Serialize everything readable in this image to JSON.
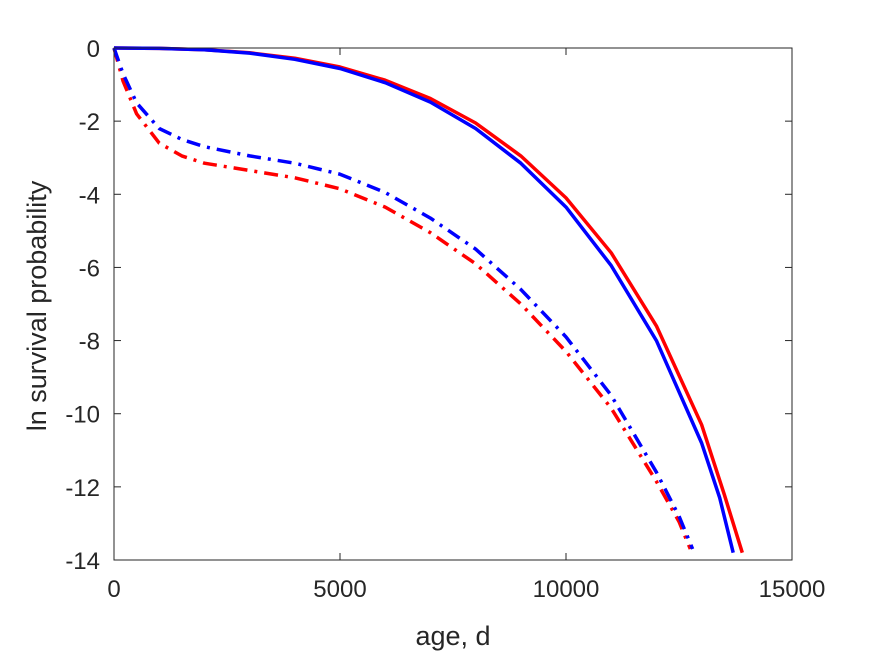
{
  "chart_data": {
    "type": "line",
    "title": "",
    "xlabel": "age, d",
    "ylabel": "ln survival probability",
    "xlim": [
      0,
      15000
    ],
    "ylim": [
      -14,
      0
    ],
    "xticks": [
      0,
      5000,
      10000,
      15000
    ],
    "xtick_labels": [
      "0",
      "5000",
      "10000",
      "15000"
    ],
    "yticks": [
      0,
      -2,
      -4,
      -6,
      -8,
      -10,
      -12,
      -14
    ],
    "ytick_labels": [
      "0",
      "-2",
      "-4",
      "-6",
      "-8",
      "-10",
      "-12",
      "-14"
    ],
    "grid": false,
    "legend": null,
    "series": [
      {
        "color": "#ff0000",
        "line_style": "solid",
        "x": [
          0,
          1000,
          2000,
          3000,
          4000,
          5000,
          6000,
          7000,
          8000,
          9000,
          10000,
          11000,
          12000,
          13000,
          13500,
          13900
        ],
        "y": [
          0,
          -0.01,
          -0.05,
          -0.13,
          -0.28,
          -0.52,
          -0.88,
          -1.38,
          -2.05,
          -2.95,
          -4.1,
          -5.6,
          -7.6,
          -10.3,
          -12.2,
          -13.8
        ]
      },
      {
        "color": "#0000ff",
        "line_style": "solid",
        "x": [
          0,
          1000,
          2000,
          3000,
          4000,
          5000,
          6000,
          7000,
          8000,
          9000,
          10000,
          11000,
          12000,
          13000,
          13400,
          13700
        ],
        "y": [
          0,
          -0.01,
          -0.05,
          -0.14,
          -0.31,
          -0.56,
          -0.95,
          -1.48,
          -2.2,
          -3.15,
          -4.35,
          -5.95,
          -8.0,
          -10.8,
          -12.3,
          -13.8
        ]
      },
      {
        "color": "#ff0000",
        "line_style": "dashdot",
        "x": [
          0,
          200,
          500,
          1000,
          1500,
          2000,
          3000,
          4000,
          5000,
          6000,
          7000,
          8000,
          9000,
          10000,
          11000,
          12000,
          12500,
          12750
        ],
        "y": [
          0,
          -0.9,
          -1.8,
          -2.6,
          -2.95,
          -3.15,
          -3.35,
          -3.55,
          -3.85,
          -4.35,
          -5.05,
          -5.9,
          -7.0,
          -8.3,
          -9.85,
          -11.85,
          -12.95,
          -13.7
        ]
      },
      {
        "color": "#0000ff",
        "line_style": "dashdot",
        "x": [
          0,
          200,
          500,
          1000,
          1500,
          2000,
          3000,
          4000,
          5000,
          6000,
          7000,
          8000,
          9000,
          10000,
          11000,
          12000,
          12500,
          12800
        ],
        "y": [
          0,
          -0.7,
          -1.5,
          -2.2,
          -2.5,
          -2.7,
          -2.95,
          -3.15,
          -3.45,
          -3.95,
          -4.65,
          -5.5,
          -6.6,
          -7.9,
          -9.5,
          -11.6,
          -12.8,
          -13.7
        ]
      }
    ]
  }
}
